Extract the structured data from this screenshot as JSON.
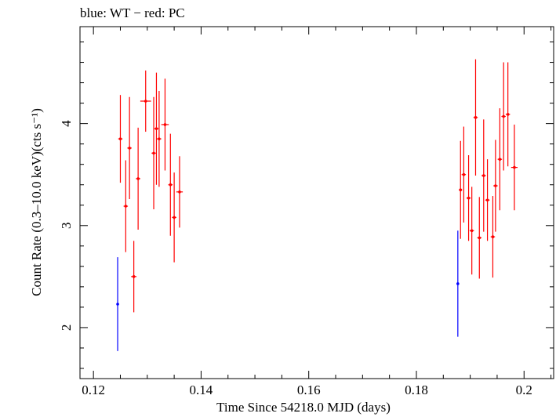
{
  "chart_data": {
    "type": "scatter",
    "title": "blue: WT − red: PC",
    "xlabel": "Time Since 54218.0 MJD (days)",
    "ylabel": "Count Rate (0.3–10.0 keV)(cts s⁻¹)",
    "xlim": [
      0.1175,
      0.2055
    ],
    "ylim": [
      1.5,
      4.95
    ],
    "x_ticks": [
      0.12,
      0.14,
      0.16,
      0.18,
      0.2
    ],
    "x_tick_labels": [
      "0.12",
      "0.14",
      "0.16",
      "0.18",
      "0.2"
    ],
    "y_ticks": [
      2,
      3,
      4
    ],
    "y_tick_labels": [
      "2",
      "3",
      "4"
    ],
    "grid": false,
    "series": [
      {
        "name": "WT",
        "color": "#0000ff",
        "points": [
          {
            "x": 0.1245,
            "y": 2.23,
            "yerr": 0.46,
            "xerr": 0.0001
          },
          {
            "x": 0.1877,
            "y": 2.43,
            "yerr": 0.52,
            "xerr": 0.0001
          }
        ]
      },
      {
        "name": "PC",
        "color": "#ff0000",
        "points": [
          {
            "x": 0.125,
            "y": 3.85,
            "yerr": 0.43,
            "xerr": 0.0004
          },
          {
            "x": 0.126,
            "y": 3.19,
            "yerr": 0.45,
            "xerr": 0.0004
          },
          {
            "x": 0.1267,
            "y": 3.76,
            "yerr": 0.5,
            "xerr": 0.0004
          },
          {
            "x": 0.1275,
            "y": 2.5,
            "yerr": 0.35,
            "xerr": 0.0005
          },
          {
            "x": 0.1283,
            "y": 3.46,
            "yerr": 0.5,
            "xerr": 0.0004
          },
          {
            "x": 0.1297,
            "y": 4.22,
            "yerr": 0.3,
            "xerr": 0.001
          },
          {
            "x": 0.1312,
            "y": 3.71,
            "yerr": 0.55,
            "xerr": 0.0004
          },
          {
            "x": 0.1317,
            "y": 3.95,
            "yerr": 0.55,
            "xerr": 0.0004
          },
          {
            "x": 0.1322,
            "y": 3.85,
            "yerr": 0.47,
            "xerr": 0.0004
          },
          {
            "x": 0.1333,
            "y": 3.99,
            "yerr": 0.45,
            "xerr": 0.0007
          },
          {
            "x": 0.1343,
            "y": 3.4,
            "yerr": 0.5,
            "xerr": 0.0004
          },
          {
            "x": 0.135,
            "y": 3.08,
            "yerr": 0.44,
            "xerr": 0.0004
          },
          {
            "x": 0.136,
            "y": 3.33,
            "yerr": 0.35,
            "xerr": 0.0006
          },
          {
            "x": 0.1882,
            "y": 3.35,
            "yerr": 0.48,
            "xerr": 0.0003
          },
          {
            "x": 0.1888,
            "y": 3.5,
            "yerr": 0.47,
            "xerr": 0.0004
          },
          {
            "x": 0.1897,
            "y": 3.27,
            "yerr": 0.42,
            "xerr": 0.0004
          },
          {
            "x": 0.1903,
            "y": 2.95,
            "yerr": 0.43,
            "xerr": 0.0004
          },
          {
            "x": 0.191,
            "y": 4.06,
            "yerr": 0.57,
            "xerr": 0.0004
          },
          {
            "x": 0.1917,
            "y": 2.88,
            "yerr": 0.4,
            "xerr": 0.0004
          },
          {
            "x": 0.1925,
            "y": 3.49,
            "yerr": 0.55,
            "xerr": 0.0004
          },
          {
            "x": 0.1932,
            "y": 3.25,
            "yerr": 0.4,
            "xerr": 0.0004
          },
          {
            "x": 0.1942,
            "y": 2.89,
            "yerr": 0.4,
            "xerr": 0.0004
          },
          {
            "x": 0.1947,
            "y": 3.39,
            "yerr": 0.45,
            "xerr": 0.0004
          },
          {
            "x": 0.1955,
            "y": 3.65,
            "yerr": 0.5,
            "xerr": 0.0004
          },
          {
            "x": 0.1962,
            "y": 4.07,
            "yerr": 0.53,
            "xerr": 0.0004
          },
          {
            "x": 0.197,
            "y": 4.09,
            "yerr": 0.51,
            "xerr": 0.0004
          },
          {
            "x": 0.1982,
            "y": 3.57,
            "yerr": 0.42,
            "xerr": 0.0006
          }
        ]
      }
    ]
  }
}
